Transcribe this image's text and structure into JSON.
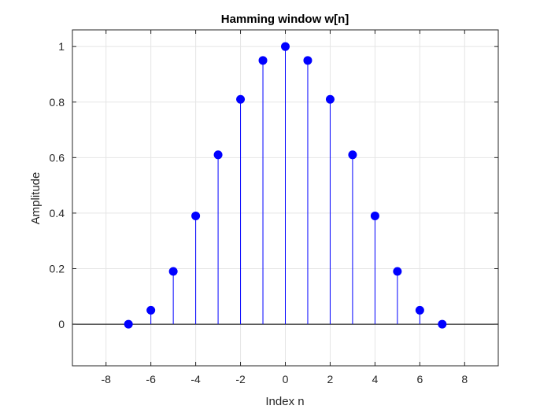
{
  "chart_data": {
    "type": "stem",
    "title": "Hamming window w[n]",
    "xlabel": "Index n",
    "ylabel": "Amplitude",
    "xlim": [
      -9.5,
      9.5
    ],
    "ylim": [
      -0.15,
      1.06
    ],
    "xticks": [
      -8,
      -6,
      -4,
      -2,
      0,
      2,
      4,
      6,
      8
    ],
    "xtick_labels": [
      "-8",
      "-6",
      "-4",
      "-2",
      "0",
      "2",
      "4",
      "6",
      "8"
    ],
    "yticks": [
      0,
      0.2,
      0.4,
      0.6,
      0.8,
      1
    ],
    "ytick_labels": [
      "0",
      "0.2",
      "0.4",
      "0.6",
      "0.8",
      "1"
    ],
    "grid": true,
    "baseline": 0,
    "series": [
      {
        "color": "#0000ff",
        "x": [
          -7,
          -6,
          -5,
          -4,
          -3,
          -2,
          -1,
          0,
          1,
          2,
          3,
          4,
          5,
          6,
          7
        ],
        "y": [
          0,
          0.05,
          0.19,
          0.39,
          0.61,
          0.81,
          0.95,
          1,
          0.95,
          0.81,
          0.61,
          0.39,
          0.19,
          0.05,
          0
        ]
      }
    ]
  }
}
